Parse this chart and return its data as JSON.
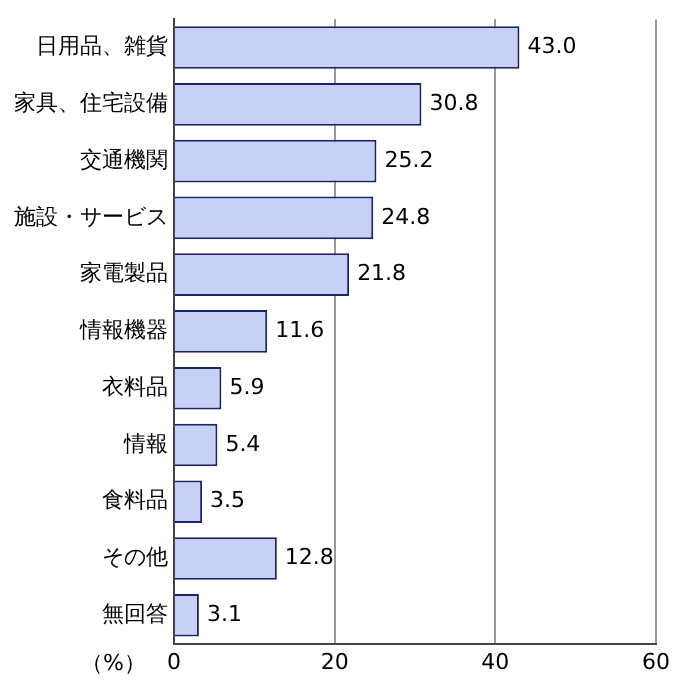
{
  "chart_data": {
    "type": "bar",
    "orientation": "horizontal",
    "xlabel": "（%）",
    "categories": [
      "日用品、雑貨",
      "家具、住宅設備",
      "交通機関",
      "施設・サービス",
      "家電製品",
      "情報機器",
      "衣料品",
      "情報",
      "食料品",
      "その他",
      "無回答"
    ],
    "values": [
      43.0,
      30.8,
      25.2,
      24.8,
      21.8,
      11.6,
      5.9,
      5.4,
      3.5,
      12.8,
      3.1
    ],
    "value_labels": [
      "43.0",
      "30.8",
      "25.2",
      "24.8",
      "21.8",
      "11.6",
      "5.9",
      "5.4",
      "3.5",
      "12.8",
      "3.1"
    ],
    "color": "#c8d0f4",
    "xlim": [
      0,
      60
    ],
    "xticks": [
      0,
      20,
      40,
      60
    ],
    "grid": "x",
    "legend": false
  }
}
